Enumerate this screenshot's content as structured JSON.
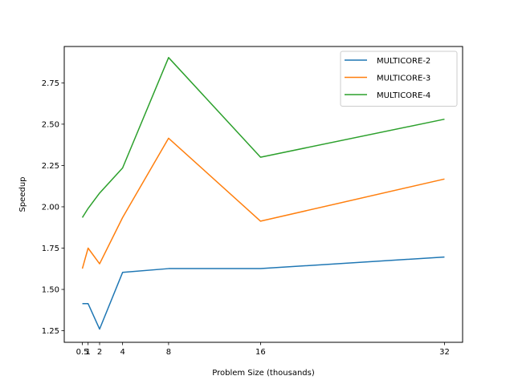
{
  "chart_data": {
    "type": "line",
    "title": "",
    "xlabel": "Problem Size (thousands)",
    "ylabel": "Speedup",
    "x": [
      0.5,
      1,
      2,
      4,
      8,
      16,
      32
    ],
    "x_ticks": [
      0.5,
      1,
      2,
      4,
      8,
      16,
      32
    ],
    "x_tick_labels": [
      "0.5",
      "1",
      "2",
      "4",
      "8",
      "16",
      "32"
    ],
    "y_ticks": [
      1.25,
      1.5,
      1.75,
      2.0,
      2.25,
      2.5,
      2.75
    ],
    "y_tick_labels": [
      "1.25",
      "1.50",
      "1.75",
      "2.00",
      "2.25",
      "2.50",
      "2.75"
    ],
    "xlim": [
      -1.075,
      33.575
    ],
    "ylim": [
      1.18,
      2.97
    ],
    "grid": false,
    "legend_position": "top-right",
    "series": [
      {
        "name": "MULTICORE-2",
        "color": "#1f77b4",
        "values": [
          1.414,
          1.414,
          1.26,
          1.603,
          1.626,
          1.626,
          1.696
        ]
      },
      {
        "name": "MULTICORE-3",
        "color": "#ff7f0e",
        "values": [
          1.626,
          1.75,
          1.655,
          1.935,
          2.415,
          1.913,
          2.168
        ]
      },
      {
        "name": "MULTICORE-4",
        "color": "#2ca02c",
        "values": [
          1.935,
          1.99,
          2.083,
          2.235,
          2.903,
          2.3,
          2.53
        ]
      }
    ]
  }
}
